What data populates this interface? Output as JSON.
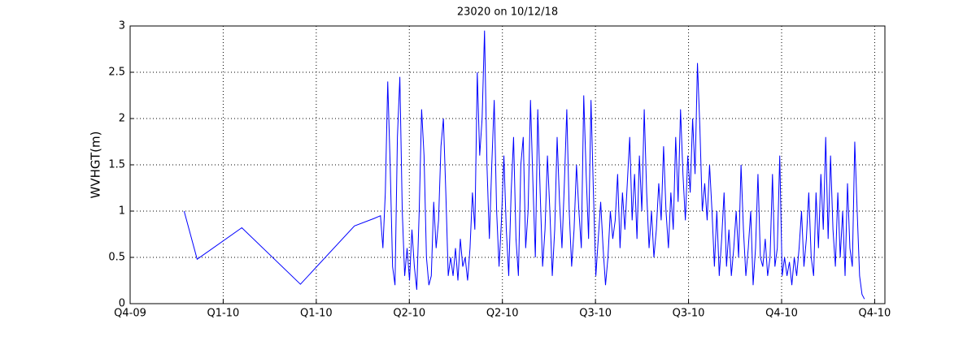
{
  "chart_data": {
    "type": "line",
    "title": "23020 on 10/12/18",
    "y_label": "WVHGT(m)",
    "color": "#0000ff",
    "grid": true,
    "xlim": [
      0,
      8.11
    ],
    "ylim": [
      0,
      3
    ],
    "xticks": [
      {
        "value": 0,
        "label": "Q4-09"
      },
      {
        "value": 1,
        "label": "Q1-10"
      },
      {
        "value": 2,
        "label": "Q1-10"
      },
      {
        "value": 3,
        "label": "Q2-10"
      },
      {
        "value": 4,
        "label": "Q2-10"
      },
      {
        "value": 5,
        "label": "Q3-10"
      },
      {
        "value": 6,
        "label": "Q3-10"
      },
      {
        "value": 7,
        "label": "Q4-10"
      },
      {
        "value": 8,
        "label": "Q4-10"
      }
    ],
    "yticks": [
      0,
      0.5,
      1,
      1.5,
      2,
      2.5,
      3
    ],
    "x": [
      0.58,
      0.72,
      1.2,
      1.83,
      2.41,
      2.62,
      2.69,
      2.716,
      2.742,
      2.768,
      2.794,
      2.82,
      2.846,
      2.872,
      2.898,
      2.924,
      2.95,
      2.976,
      3.002,
      3.028,
      3.054,
      3.08,
      3.106,
      3.132,
      3.158,
      3.184,
      3.21,
      3.236,
      3.262,
      3.288,
      3.314,
      3.34,
      3.366,
      3.392,
      3.418,
      3.444,
      3.47,
      3.496,
      3.522,
      3.548,
      3.574,
      3.6,
      3.626,
      3.652,
      3.678,
      3.704,
      3.73,
      3.756,
      3.782,
      3.808,
      3.834,
      3.86,
      3.886,
      3.912,
      3.938,
      3.964,
      3.99,
      4.016,
      4.042,
      4.068,
      4.094,
      4.12,
      4.146,
      4.172,
      4.198,
      4.224,
      4.25,
      4.276,
      4.302,
      4.328,
      4.354,
      4.38,
      4.406,
      4.432,
      4.458,
      4.484,
      4.51,
      4.536,
      4.562,
      4.588,
      4.614,
      4.64,
      4.666,
      4.692,
      4.718,
      4.744,
      4.77,
      4.796,
      4.822,
      4.848,
      4.874,
      4.9,
      4.926,
      4.952,
      4.978,
      5.004,
      5.03,
      5.056,
      5.082,
      5.108,
      5.134,
      5.16,
      5.186,
      5.212,
      5.238,
      5.264,
      5.29,
      5.316,
      5.342,
      5.368,
      5.394,
      5.42,
      5.446,
      5.472,
      5.498,
      5.524,
      5.55,
      5.576,
      5.602,
      5.628,
      5.654,
      5.68,
      5.706,
      5.732,
      5.758,
      5.784,
      5.81,
      5.836,
      5.862,
      5.888,
      5.914,
      5.94,
      5.966,
      5.992,
      6.018,
      6.044,
      6.07,
      6.096,
      6.122,
      6.148,
      6.174,
      6.2,
      6.226,
      6.252,
      6.278,
      6.304,
      6.33,
      6.356,
      6.382,
      6.408,
      6.434,
      6.46,
      6.486,
      6.512,
      6.538,
      6.564,
      6.59,
      6.616,
      6.642,
      6.668,
      6.694,
      6.72,
      6.746,
      6.772,
      6.798,
      6.824,
      6.85,
      6.876,
      6.902,
      6.928,
      6.954,
      6.98,
      7.006,
      7.032,
      7.058,
      7.084,
      7.11,
      7.136,
      7.162,
      7.188,
      7.214,
      7.24,
      7.266,
      7.292,
      7.318,
      7.344,
      7.37,
      7.396,
      7.422,
      7.448,
      7.474,
      7.5,
      7.526,
      7.552,
      7.578,
      7.604,
      7.63,
      7.656,
      7.682,
      7.708,
      7.734,
      7.76,
      7.786,
      7.812,
      7.838,
      7.864,
      7.89
    ],
    "values": [
      1,
      0.48,
      0.82,
      0.21,
      0.84,
      0.92,
      0.95,
      0.6,
      1.2,
      2.4,
      1.5,
      0.4,
      0.2,
      1.8,
      2.45,
      1,
      0.3,
      0.6,
      0.25,
      0.8,
      0.4,
      0.15,
      1,
      2.1,
      1.6,
      0.5,
      0.2,
      0.3,
      1.1,
      0.6,
      0.9,
      1.7,
      2,
      1.2,
      0.3,
      0.5,
      0.3,
      0.6,
      0.25,
      0.7,
      0.4,
      0.5,
      0.25,
      0.6,
      1.2,
      0.8,
      2.5,
      1.6,
      2,
      2.95,
      1.5,
      0.7,
      1.5,
      2.2,
      1,
      0.4,
      0.9,
      1.6,
      0.8,
      0.3,
      1.2,
      1.8,
      0.7,
      0.3,
      1.5,
      1.8,
      0.6,
      1,
      2.2,
      1.3,
      0.5,
      2.1,
      1.2,
      0.4,
      0.8,
      1.6,
      1,
      0.3,
      0.8,
      1.8,
      1.1,
      0.6,
      1.3,
      2.1,
      1,
      0.4,
      0.8,
      1.5,
      1,
      0.6,
      2.25,
      1.4,
      0.7,
      2.2,
      1.2,
      0.3,
      0.7,
      1.1,
      0.6,
      0.2,
      0.5,
      1,
      0.7,
      0.9,
      1.4,
      0.6,
      1.2,
      0.8,
      1.3,
      1.8,
      0.9,
      1.4,
      0.7,
      1.6,
      1,
      2.1,
      1.2,
      0.6,
      1,
      0.5,
      0.8,
      1.3,
      0.9,
      1.7,
      1,
      0.6,
      1.2,
      0.8,
      1.8,
      1.1,
      2.1,
      1.4,
      0.9,
      1.6,
      1.2,
      2,
      1.4,
      2.6,
      1.9,
      1,
      1.3,
      0.9,
      1.5,
      1,
      0.4,
      1,
      0.3,
      0.7,
      1.2,
      0.4,
      0.8,
      0.3,
      0.6,
      1,
      0.5,
      1.5,
      0.8,
      0.3,
      0.6,
      1,
      0.2,
      0.6,
      1.4,
      0.5,
      0.4,
      0.7,
      0.3,
      0.5,
      1.4,
      0.4,
      0.6,
      1.6,
      0.3,
      0.5,
      0.3,
      0.45,
      0.2,
      0.5,
      0.3,
      0.6,
      1,
      0.4,
      0.7,
      1.2,
      0.5,
      0.3,
      1.2,
      0.6,
      1.4,
      0.8,
      1.8,
      0.7,
      1.6,
      0.8,
      0.4,
      1.2,
      0.5,
      1,
      0.3,
      1.3,
      0.6,
      0.4,
      1.75,
      1,
      0.3,
      0.1,
      0.05
    ]
  }
}
